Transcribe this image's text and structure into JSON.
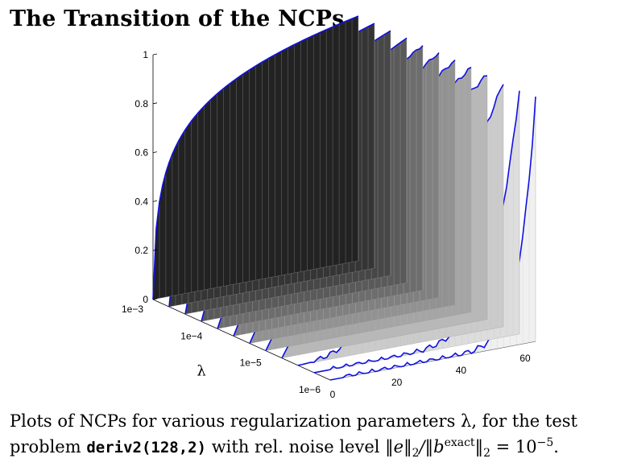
{
  "title": "The Transition of the NCPs",
  "caption": {
    "line1": "Plots of NCPs for various regularization parameters λ, for the test",
    "line2_prefix": "problem ",
    "code": "deriv2(128,2)",
    "line2_mid": " with rel. noise level ",
    "norm_num": "‖e‖",
    "sub1": "2",
    "slash": "/‖b",
    "sup_exact": "exact",
    "norm_end": "‖",
    "sub2": "2",
    "eq": " = 10",
    "exp": "−5",
    "period": "."
  },
  "chart_data": {
    "type": "surface-3d",
    "title": "",
    "xlabel": "",
    "ylabel": "λ",
    "zlabel": "",
    "x_range": [
      0,
      64
    ],
    "x_ticks": [
      "0",
      "20",
      "40",
      "60"
    ],
    "lambda_ticks": [
      "1e−3",
      "1e−4",
      "1e−5",
      "1e−6"
    ],
    "z_ticks": [
      "0",
      "0.2",
      "0.4",
      "0.6",
      "0.8",
      "1"
    ],
    "z_range": [
      0,
      1
    ],
    "series_description": "Normalized cumulative periodogram (NCP) curves, one per λ, highlighted in blue",
    "highlighted_lambda_count": 12,
    "colors": {
      "curve": "#1010e0",
      "dark_face": "#222222",
      "light_face": "#f0f0f0"
    }
  }
}
